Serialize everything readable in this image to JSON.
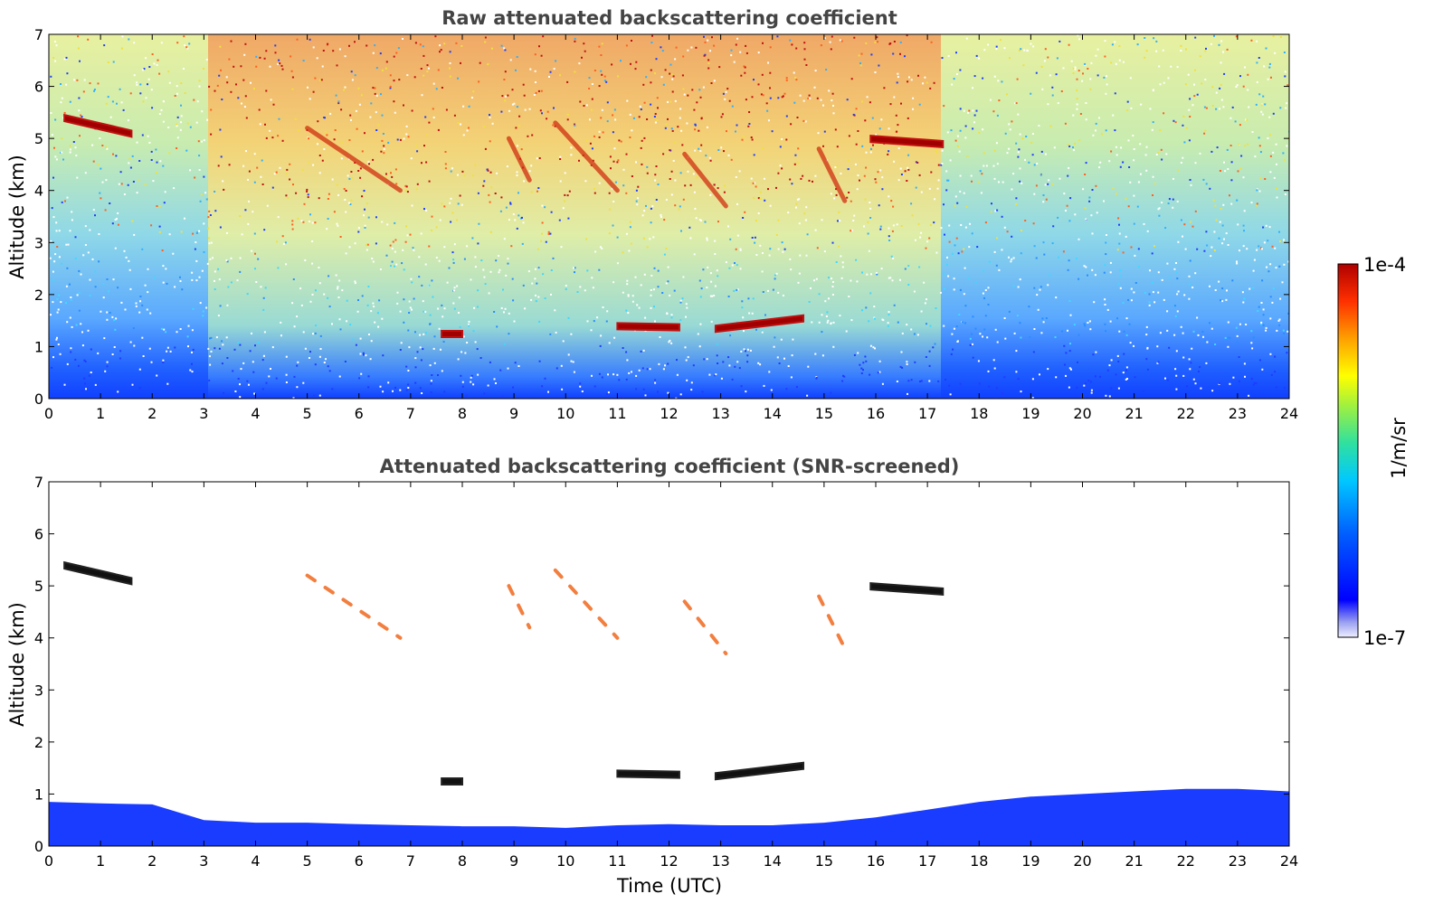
{
  "chart_data": [
    {
      "type": "heatmap",
      "title": "Raw attenuated backscattering coefficient",
      "xlabel": "",
      "ylabel": "Altitude (km)",
      "xlim": [
        0,
        24
      ],
      "ylim": [
        0,
        7
      ],
      "xticks": [
        "0",
        "1",
        "2",
        "3",
        "4",
        "5",
        "6",
        "7",
        "8",
        "9",
        "10",
        "11",
        "12",
        "13",
        "14",
        "15",
        "16",
        "17",
        "18",
        "19",
        "20",
        "21",
        "22",
        "23",
        "24"
      ],
      "yticks": [
        "0",
        "1",
        "2",
        "3",
        "4",
        "5",
        "6",
        "7"
      ],
      "features": [
        {
          "kind": "cloud_layer",
          "t_start": 0.3,
          "t_end": 1.6,
          "alt_start": 5.4,
          "alt_end": 5.1,
          "level": "high"
        },
        {
          "kind": "cloud_layer",
          "t_start": 7.6,
          "t_end": 8.0,
          "alt_start": 1.25,
          "alt_end": 1.25,
          "level": "high"
        },
        {
          "kind": "cloud_layer",
          "t_start": 11.0,
          "t_end": 12.2,
          "alt_start": 1.4,
          "alt_end": 1.38,
          "level": "high"
        },
        {
          "kind": "cloud_layer",
          "t_start": 12.9,
          "t_end": 14.6,
          "alt_start": 1.35,
          "alt_end": 1.55,
          "level": "high"
        },
        {
          "kind": "cloud_layer",
          "t_start": 15.9,
          "t_end": 17.3,
          "alt_start": 5.0,
          "alt_end": 4.9,
          "level": "high"
        },
        {
          "kind": "virga",
          "t_start": 5.0,
          "t_end": 6.8,
          "alt_start": 5.2,
          "alt_end": 4.0
        },
        {
          "kind": "virga",
          "t_start": 8.9,
          "t_end": 9.3,
          "alt_start": 5.0,
          "alt_end": 4.2
        },
        {
          "kind": "virga",
          "t_start": 9.8,
          "t_end": 11.0,
          "alt_start": 5.3,
          "alt_end": 4.0
        },
        {
          "kind": "virga",
          "t_start": 12.3,
          "t_end": 13.1,
          "alt_start": 4.7,
          "alt_end": 3.7
        },
        {
          "kind": "virga",
          "t_start": 14.9,
          "t_end": 15.4,
          "alt_start": 4.8,
          "alt_end": 3.8
        }
      ]
    },
    {
      "type": "heatmap",
      "title": "Attenuated backscattering coefficient (SNR-screened)",
      "xlabel": "Time (UTC)",
      "ylabel": "Altitude (km)",
      "xlim": [
        0,
        24
      ],
      "ylim": [
        0,
        7
      ],
      "xticks": [
        "0",
        "1",
        "2",
        "3",
        "4",
        "5",
        "6",
        "7",
        "8",
        "9",
        "10",
        "11",
        "12",
        "13",
        "14",
        "15",
        "16",
        "17",
        "18",
        "19",
        "20",
        "21",
        "22",
        "23",
        "24"
      ],
      "yticks": [
        "0",
        "1",
        "2",
        "3",
        "4",
        "5",
        "6",
        "7"
      ],
      "boundary_layer_top_km": [
        [
          0,
          0.85
        ],
        [
          1,
          0.82
        ],
        [
          2,
          0.8
        ],
        [
          3,
          0.5
        ],
        [
          4,
          0.45
        ],
        [
          5,
          0.45
        ],
        [
          6,
          0.42
        ],
        [
          7,
          0.4
        ],
        [
          8,
          0.38
        ],
        [
          9,
          0.38
        ],
        [
          10,
          0.35
        ],
        [
          11,
          0.4
        ],
        [
          12,
          0.42
        ],
        [
          13,
          0.4
        ],
        [
          14,
          0.4
        ],
        [
          15,
          0.45
        ],
        [
          16,
          0.55
        ],
        [
          17,
          0.7
        ],
        [
          18,
          0.85
        ],
        [
          19,
          0.95
        ],
        [
          20,
          1.0
        ],
        [
          21,
          1.05
        ],
        [
          22,
          1.1
        ],
        [
          23,
          1.1
        ],
        [
          24,
          1.05
        ]
      ]
    }
  ],
  "colorbar": {
    "max_label": "1e-4",
    "min_label": "1e-7",
    "unit_label": "1/m/sr",
    "colors": [
      "#eeeeff",
      "#9aa0f0",
      "#0000ff",
      "#0060ff",
      "#00c8ff",
      "#30e0a0",
      "#a0f040",
      "#ffff00",
      "#ffa000",
      "#ff3000",
      "#b00000"
    ]
  }
}
